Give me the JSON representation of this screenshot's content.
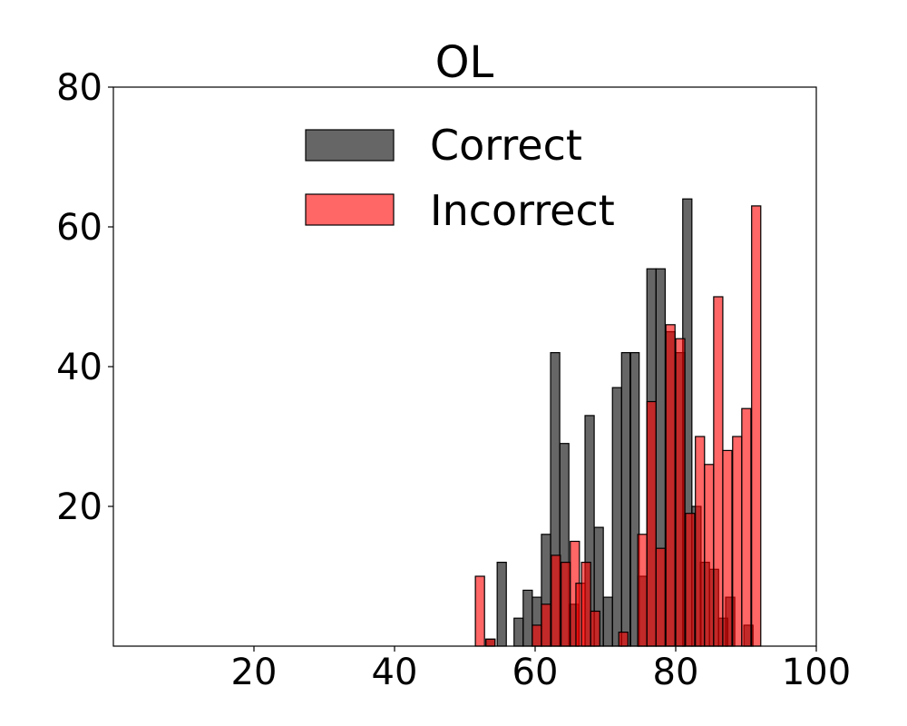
{
  "chart_data": {
    "type": "bar",
    "subtype": "overlapping-histogram",
    "title": "OL",
    "xlabel": "",
    "ylabel": "",
    "xlim": [
      0,
      100
    ],
    "ylim": [
      0,
      80
    ],
    "xticks": [
      20,
      40,
      60,
      80,
      100
    ],
    "yticks": [
      20,
      40,
      60,
      80
    ],
    "grid": false,
    "legend_position": "upper center",
    "bin_width": 1.3,
    "series": [
      {
        "name": "Correct",
        "color": "#666666",
        "bins": [
          {
            "x": 53.0,
            "value": 1
          },
          {
            "x": 54.6,
            "value": 12
          },
          {
            "x": 57.0,
            "value": 4
          },
          {
            "x": 58.3,
            "value": 8
          },
          {
            "x": 59.6,
            "value": 7
          },
          {
            "x": 60.9,
            "value": 16
          },
          {
            "x": 62.2,
            "value": 42
          },
          {
            "x": 63.5,
            "value": 29
          },
          {
            "x": 64.9,
            "value": 6
          },
          {
            "x": 67.1,
            "value": 33
          },
          {
            "x": 68.4,
            "value": 17
          },
          {
            "x": 69.7,
            "value": 7
          },
          {
            "x": 71.0,
            "value": 37
          },
          {
            "x": 72.3,
            "value": 42
          },
          {
            "x": 73.5,
            "value": 42
          },
          {
            "x": 74.6,
            "value": 10
          },
          {
            "x": 75.9,
            "value": 54
          },
          {
            "x": 77.2,
            "value": 54
          },
          {
            "x": 78.6,
            "value": 45
          },
          {
            "x": 80.0,
            "value": 42
          },
          {
            "x": 81.0,
            "value": 64
          },
          {
            "x": 82.3,
            "value": 20
          },
          {
            "x": 83.5,
            "value": 12
          },
          {
            "x": 84.8,
            "value": 11
          },
          {
            "x": 86.1,
            "value": 4
          },
          {
            "x": 87.1,
            "value": 7
          },
          {
            "x": 89.7,
            "value": 3
          }
        ]
      },
      {
        "name": "Incorrect",
        "color": "#ff6666",
        "bins": [
          {
            "x": 51.5,
            "value": 10
          },
          {
            "x": 53.0,
            "value": 1
          },
          {
            "x": 59.6,
            "value": 3
          },
          {
            "x": 60.9,
            "value": 6
          },
          {
            "x": 62.3,
            "value": 13
          },
          {
            "x": 63.7,
            "value": 12
          },
          {
            "x": 65.0,
            "value": 15
          },
          {
            "x": 65.8,
            "value": 9
          },
          {
            "x": 66.6,
            "value": 12
          },
          {
            "x": 67.9,
            "value": 5
          },
          {
            "x": 71.9,
            "value": 2
          },
          {
            "x": 74.6,
            "value": 16
          },
          {
            "x": 75.9,
            "value": 35
          },
          {
            "x": 77.2,
            "value": 14
          },
          {
            "x": 78.6,
            "value": 46
          },
          {
            "x": 80.0,
            "value": 44
          },
          {
            "x": 81.4,
            "value": 19
          },
          {
            "x": 82.8,
            "value": 30
          },
          {
            "x": 84.1,
            "value": 26
          },
          {
            "x": 85.4,
            "value": 50
          },
          {
            "x": 86.7,
            "value": 28
          },
          {
            "x": 88.1,
            "value": 30
          },
          {
            "x": 89.4,
            "value": 34
          },
          {
            "x": 90.8,
            "value": 63
          }
        ]
      }
    ]
  },
  "legend": {
    "items": [
      {
        "label": "Correct",
        "color": "#666666"
      },
      {
        "label": "Incorrect",
        "color": "#ff6666"
      }
    ]
  }
}
